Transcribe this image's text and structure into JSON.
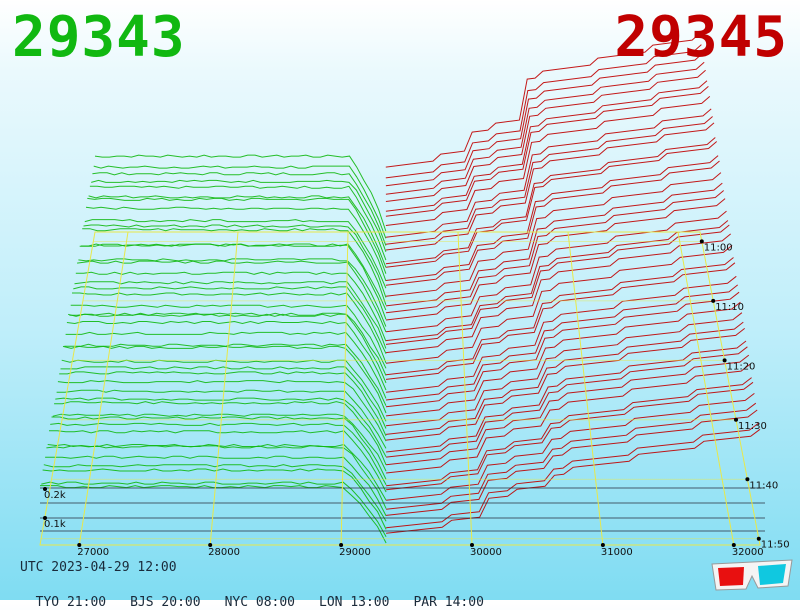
{
  "header": {
    "bid_price": "29343",
    "ask_price": "29345"
  },
  "footer": {
    "utc": "UTC 2023-04-29 12:00",
    "zones": [
      {
        "label": "TYO 21:00"
      },
      {
        "label": "BJS 20:00"
      },
      {
        "label": "NYC 08:00"
      },
      {
        "label": "LON 13:00"
      },
      {
        "label": "PAR 14:00"
      }
    ]
  },
  "colors": {
    "bid": "#11b811",
    "ask": "#c00000",
    "grid": "#e8e84a",
    "base": "#b040e0"
  },
  "icons": {
    "corner": "3d-glasses-icon"
  },
  "chart_data": {
    "type": "area",
    "title": "",
    "price_ticks": [
      "27000",
      "28000",
      "29000",
      "30000",
      "31000",
      "32000"
    ],
    "price_values": [
      27000,
      28000,
      29000,
      30000,
      31000,
      32000
    ],
    "time_ticks": [
      "11:00",
      "11:10",
      "11:20",
      "11:30",
      "11:40",
      "11:50"
    ],
    "depth_ticks": [
      "0.1k",
      "0.2k"
    ],
    "price_range": [
      26700,
      32200
    ],
    "mid_price": 29344,
    "time_range": [
      "10:55",
      "12:00"
    ],
    "series": [
      {
        "side": "bid",
        "price_from": 26700,
        "price_to": 29343
      },
      {
        "side": "ask",
        "price_from": 29345,
        "price_to": 32200
      }
    ]
  }
}
